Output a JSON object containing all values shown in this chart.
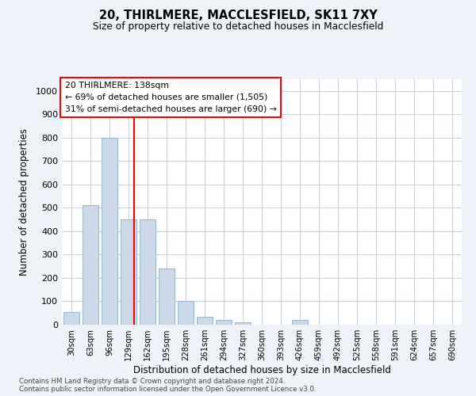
{
  "title1": "20, THIRLMERE, MACCLESFIELD, SK11 7XY",
  "title2": "Size of property relative to detached houses in Macclesfield",
  "xlabel": "Distribution of detached houses by size in Macclesfield",
  "ylabel": "Number of detached properties",
  "categories": [
    "30sqm",
    "63sqm",
    "96sqm",
    "129sqm",
    "162sqm",
    "195sqm",
    "228sqm",
    "261sqm",
    "294sqm",
    "327sqm",
    "360sqm",
    "393sqm",
    "426sqm",
    "459sqm",
    "492sqm",
    "525sqm",
    "558sqm",
    "591sqm",
    "624sqm",
    "657sqm",
    "690sqm"
  ],
  "values": [
    55,
    510,
    800,
    450,
    450,
    240,
    100,
    35,
    20,
    10,
    0,
    0,
    20,
    0,
    0,
    0,
    0,
    0,
    0,
    0,
    0
  ],
  "bar_color": "#ccd9e8",
  "bar_edge_color": "#9ab8d0",
  "annotation_text_line1": "20 THIRLMERE: 138sqm",
  "annotation_text_line2": "← 69% of detached houses are smaller (1,505)",
  "annotation_text_line3": "31% of semi-detached houses are larger (690) →",
  "vline_x_index": 3.28,
  "ylim": [
    0,
    1050
  ],
  "yticks": [
    0,
    100,
    200,
    300,
    400,
    500,
    600,
    700,
    800,
    900,
    1000
  ],
  "footer1": "Contains HM Land Registry data © Crown copyright and database right 2024.",
  "footer2": "Contains public sector information licensed under the Open Government Licence v3.0.",
  "bg_color": "#eef2f9",
  "plot_bg_color": "#ffffff",
  "grid_color": "#c8d0dc"
}
